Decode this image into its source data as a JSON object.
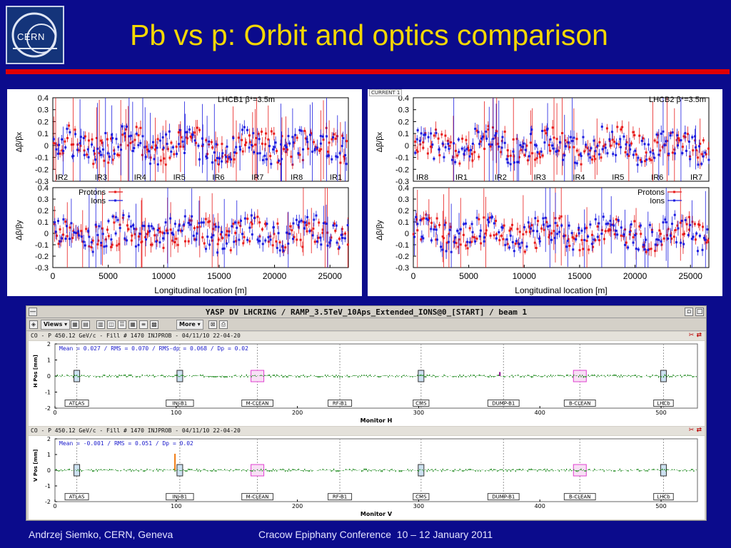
{
  "slide": {
    "logo_text": "CERN",
    "title": "Pb vs p: Orbit and optics comparison",
    "footer_left": "Andrzej Siemko, CERN, Geneva",
    "footer_conference": "Cracow Epiphany Conference",
    "footer_dates": "10 – 12 January 2011",
    "colors": {
      "background": "#0b0b8c",
      "title": "#f5d800",
      "bar": "#e00000"
    }
  },
  "left_panel": {
    "label": "LHCB1 β*=3.5m",
    "ylabel_top": "Δβ/βx",
    "ylabel_bottom": "Δβ/βy",
    "xlabel": "Longitudinal location [m]",
    "ir_labels": [
      "IR2",
      "IR3",
      "IR4",
      "IR5",
      "IR6",
      "IR7",
      "IR8",
      "IR1"
    ],
    "legend": [
      "Protons",
      "Ions"
    ]
  },
  "right_panel": {
    "tag": "CURRENT 1",
    "label": "LHCB2 β*=3.5m",
    "ylabel_top": "Δβ/βx",
    "ylabel_bottom": "Δβ/βy",
    "xlabel": "Longitudinal location [m]",
    "ir_labels": [
      "IR8",
      "IR1",
      "IR2",
      "IR3",
      "IR4",
      "IR5",
      "IR6",
      "IR7"
    ],
    "legend": [
      "Protons",
      "Ions"
    ]
  },
  "chart_data": [
    {
      "type": "scatter",
      "title": "LHCB1 β*=3.5m",
      "xlabel": "Longitudinal location [m]",
      "panels": [
        {
          "ylabel": "Δβ/βx",
          "ylim": [
            -0.3,
            0.4
          ],
          "yticks": [
            -0.3,
            -0.2,
            -0.1,
            0,
            0.1,
            0.2,
            0.3,
            0.4
          ]
        },
        {
          "ylabel": "Δβ/βy",
          "ylim": [
            -0.3,
            0.4
          ],
          "yticks": [
            -0.3,
            -0.2,
            -0.1,
            0,
            0.1,
            0.2,
            0.3,
            0.4
          ]
        }
      ],
      "xlim": [
        0,
        26659
      ],
      "xticks": [
        0,
        5000,
        10000,
        15000,
        20000,
        25000
      ],
      "series": [
        {
          "name": "Protons",
          "color": "#e81c1c"
        },
        {
          "name": "Ions",
          "color": "#1c1ce0"
        }
      ],
      "legend": "top-left of lower panel"
    },
    {
      "type": "scatter",
      "title": "LHCB2 β*=3.5m",
      "xlabel": "Longitudinal location [m]",
      "panels": [
        {
          "ylabel": "Δβ/βx",
          "ylim": [
            -0.3,
            0.4
          ],
          "yticks": [
            -0.3,
            -0.2,
            -0.1,
            0,
            0.1,
            0.2,
            0.3,
            0.4
          ]
        },
        {
          "ylabel": "Δβ/βy",
          "ylim": [
            -0.3,
            0.4
          ],
          "yticks": [
            -0.3,
            -0.2,
            -0.1,
            0,
            0.1,
            0.2,
            0.3,
            0.4
          ]
        }
      ],
      "xlim": [
        0,
        26659
      ],
      "xticks": [
        0,
        5000,
        10000,
        15000,
        20000,
        25000
      ],
      "series": [
        {
          "name": "Protons",
          "color": "#e81c1c"
        },
        {
          "name": "Ions",
          "color": "#1c1ce0"
        }
      ],
      "legend": "top-right of lower panel"
    }
  ],
  "yasp": {
    "window_title": "YASP DV LHCRING / RAMP_3.5TeV_10Aps_Extended_IONS@0_[START] / beam 1",
    "toolbar": {
      "views": "Views",
      "more": "More"
    },
    "h_plot": {
      "header": "CO - P 450.12 GeV/c - Fill # 1470 INJPROB - 04/11/10 22-04-20",
      "stats": "Mean =   0.027 / RMS =  0.070 / RMS-dp =   0.068 / Dp =   0.02",
      "ylabel": "H Pos [mm]",
      "xlabel": "Monitor H",
      "yticks": [
        "2",
        "1",
        "0",
        "-1",
        "-2"
      ],
      "xticks": [
        "0",
        "100",
        "200",
        "300",
        "400",
        "500"
      ],
      "xlim": [
        0,
        530
      ],
      "ylim": [
        -2,
        2
      ],
      "markers": [
        {
          "label": "ATLAS",
          "x": 18,
          "type": "box"
        },
        {
          "label": "INJ-B1",
          "x": 103,
          "type": "box"
        },
        {
          "label": "M-CLEAN",
          "x": 167,
          "type": "pink"
        },
        {
          "label": "RF-B1",
          "x": 235,
          "type": "none"
        },
        {
          "label": "CMS",
          "x": 302,
          "type": "box"
        },
        {
          "label": "DUMP-B1",
          "x": 370,
          "type": "none"
        },
        {
          "label": "B-CLEAN",
          "x": 433,
          "type": "pink"
        },
        {
          "label": "LHCb",
          "x": 502,
          "type": "box"
        }
      ]
    },
    "v_plot": {
      "header": "CO - P 450.12 GeV/c - Fill # 1470 INJPROB - 04/11/10 22-04-20",
      "stats": "Mean =  -0.001 / RMS =  0.051 / Dp =   0.02",
      "ylabel": "V Pos [mm]",
      "xlabel": "Monitor V",
      "yticks": [
        "2",
        "1",
        "0",
        "-1",
        "-2"
      ],
      "xticks": [
        "0",
        "100",
        "200",
        "300",
        "400",
        "500"
      ],
      "xlim": [
        0,
        530
      ],
      "ylim": [
        -2,
        2
      ],
      "markers": [
        {
          "label": "ATLAS",
          "x": 18,
          "type": "box"
        },
        {
          "label": "INJ-B1",
          "x": 103,
          "type": "box"
        },
        {
          "label": "M-CLEAN",
          "x": 167,
          "type": "pink"
        },
        {
          "label": "RF-B1",
          "x": 235,
          "type": "none"
        },
        {
          "label": "CMS",
          "x": 302,
          "type": "box"
        },
        {
          "label": "DUMP-B1",
          "x": 370,
          "type": "none"
        },
        {
          "label": "B-CLEAN",
          "x": 433,
          "type": "pink"
        },
        {
          "label": "LHCb",
          "x": 502,
          "type": "box"
        }
      ]
    }
  }
}
